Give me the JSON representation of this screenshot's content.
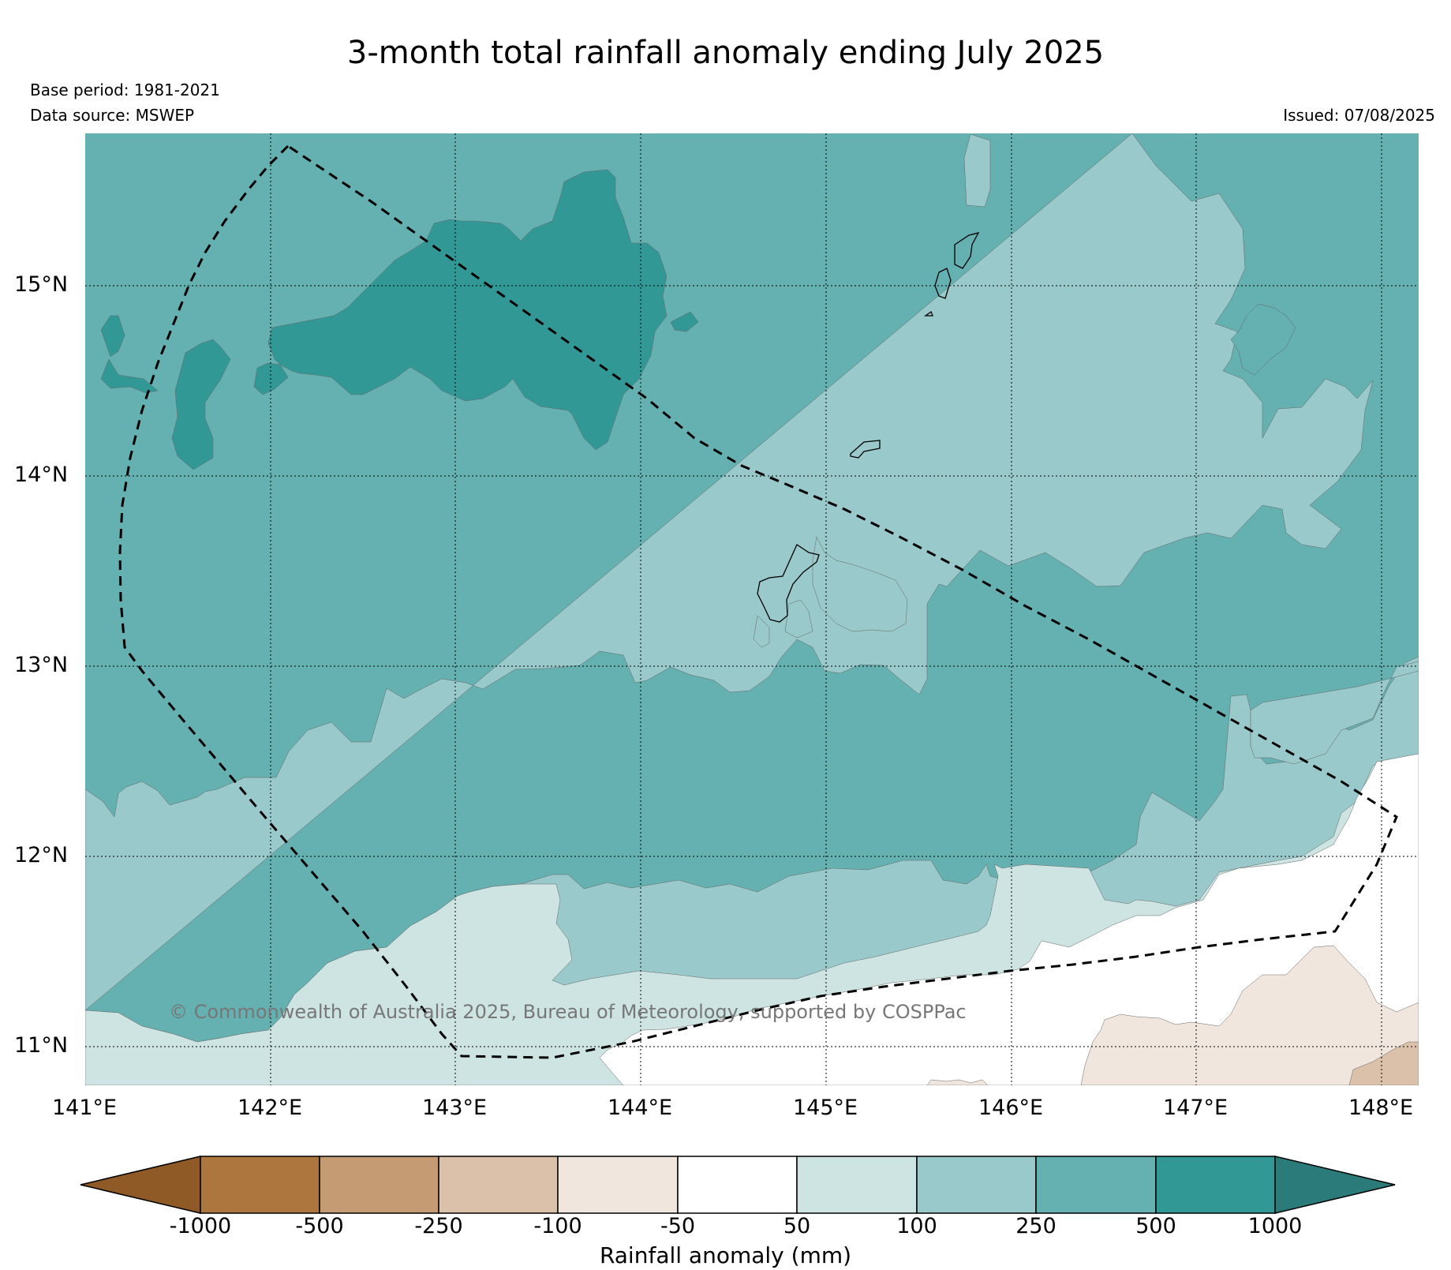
{
  "map": {
    "title": "3-month total rainfall anomaly ending July 2025",
    "base_period": "Base period: 1981-2021",
    "data_source": "Data source: MSWEP",
    "issued": "Issued: 07/08/2025",
    "credit": "© Commonwealth of Australia 2025, Bureau of Meteorology, supported by COSPPac",
    "lon_labels": [
      "141°E",
      "142°E",
      "143°E",
      "144°E",
      "145°E",
      "146°E",
      "147°E",
      "148°E"
    ],
    "lat_labels": [
      "15°N",
      "14°N",
      "13°N",
      "12°N",
      "11°N"
    ],
    "extent": {
      "lon_min": 141.0,
      "lon_max": 148.2,
      "lat_min": 10.8,
      "lat_max": 15.8
    },
    "dashed_boundary_name": "eez-boundary"
  },
  "colorbar": {
    "title": "Rainfall anomaly (mm)",
    "tick_labels": [
      "-1000",
      "-500",
      "-250",
      "-100",
      "-50",
      "50",
      "100",
      "250",
      "500",
      "1000"
    ],
    "colors": [
      "#8f5a26",
      "#ad763f",
      "#c49b72",
      "#dbc1a9",
      "#f1e6dd",
      "#ffffff",
      "#cde4e3",
      "#99c9ca",
      "#65b0b1",
      "#329896",
      "#2a7b79"
    ]
  }
}
